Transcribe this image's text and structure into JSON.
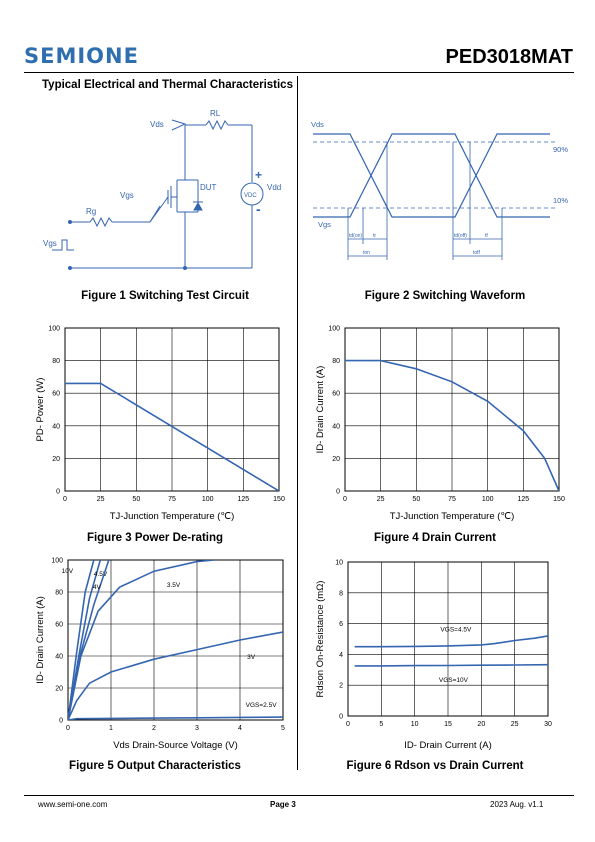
{
  "header": {
    "logo": "SEMIONE",
    "part_number": "PED3018MAT"
  },
  "section_title": "Typical Electrical and Thermal Characteristics",
  "colors": {
    "blue": "#3465b0",
    "grid": "#000000"
  },
  "fig1": {
    "caption": "Figure 1 Switching Test Circuit",
    "labels": {
      "vds": "Vds",
      "rl": "RL",
      "vgs": "Vgs",
      "rg": "Rg",
      "dut": "DUT",
      "vdc": "VDC",
      "vdd": "Vdd",
      "vgs_src": "Vgs",
      "plus": "+",
      "minus": "-"
    }
  },
  "fig2": {
    "caption": "Figure 2 Switching Waveform",
    "labels": {
      "vds": "Vds",
      "vgs": "Vgs",
      "p90": "90%",
      "p10": "10%",
      "td_on": "td(on)",
      "tr": "tr",
      "t_on": "ton",
      "td_off": "td(off)",
      "tf": "tf",
      "t_off": "toff"
    }
  },
  "fig3": {
    "caption": "Figure 3 Power De-rating",
    "chart_data": {
      "type": "line",
      "xlabel": "TJ-Junction Temperature (℃)",
      "ylabel": "PD- Power (W)",
      "xlim": [
        0,
        150
      ],
      "ylim": [
        0,
        100
      ],
      "xticks": [
        0,
        25,
        50,
        75,
        100,
        125,
        150
      ],
      "yticks": [
        0,
        20,
        40,
        60,
        80,
        100
      ],
      "grid": true,
      "series": [
        {
          "x": [
            0,
            25,
            150
          ],
          "y": [
            66,
            66,
            0
          ]
        }
      ]
    }
  },
  "fig4": {
    "caption": "Figure 4 Drain Current",
    "chart_data": {
      "type": "line",
      "xlabel": "TJ-Junction Temperature (℃)",
      "ylabel": "ID- Drain Current (A)",
      "xlim": [
        0,
        150
      ],
      "ylim": [
        0,
        100
      ],
      "xticks": [
        0,
        25,
        50,
        75,
        100,
        125,
        150
      ],
      "yticks": [
        0,
        20,
        40,
        60,
        80,
        100
      ],
      "grid": true,
      "series": [
        {
          "x": [
            0,
            25,
            50,
            75,
            100,
            125,
            140,
            150
          ],
          "y": [
            80,
            80,
            75,
            67,
            55,
            37,
            20,
            0
          ]
        }
      ]
    }
  },
  "fig5": {
    "caption": "Figure 5 Output Characteristics",
    "chart_data": {
      "type": "line",
      "xlabel": "Vds Drain-Source Voltage (V)",
      "ylabel": "ID- Drain Current (A)",
      "xlim": [
        0,
        5
      ],
      "ylim": [
        0,
        100
      ],
      "xticks": [
        0,
        1,
        2,
        3,
        4,
        5
      ],
      "yticks": [
        0,
        20,
        40,
        60,
        80,
        100
      ],
      "grid": true,
      "series": [
        {
          "name": "10V",
          "x": [
            0,
            0.2,
            0.4,
            0.6
          ],
          "y": [
            0,
            42,
            80,
            100
          ]
        },
        {
          "name": "4.5V",
          "x": [
            0,
            0.25,
            0.5,
            0.75
          ],
          "y": [
            0,
            40,
            76,
            100
          ]
        },
        {
          "name": "4V",
          "x": [
            0,
            0.3,
            0.6,
            0.95
          ],
          "y": [
            0,
            42,
            72,
            100
          ]
        },
        {
          "name": "3.5V",
          "x": [
            0,
            0.3,
            0.7,
            1.2,
            2.0,
            3.0,
            3.4
          ],
          "y": [
            0,
            40,
            68,
            83,
            93,
            99,
            100
          ]
        },
        {
          "name": "3V",
          "x": [
            0,
            0.2,
            0.5,
            1.0,
            2.0,
            3.0,
            4.0,
            5.0
          ],
          "y": [
            0,
            12,
            23,
            30,
            38,
            44,
            50,
            55
          ]
        },
        {
          "name": "VGS=2.5V",
          "x": [
            0,
            0.2,
            1,
            2,
            3,
            4,
            5
          ],
          "y": [
            0,
            0.8,
            1.0,
            1.2,
            1.4,
            1.6,
            1.8
          ]
        }
      ]
    }
  },
  "fig6": {
    "caption": "Figure 6 Rdson vs Drain Current",
    "chart_data": {
      "type": "line",
      "xlabel": "ID- Drain Current (A)",
      "ylabel": "Rdson On-Resistance (mΩ)",
      "xlim": [
        0,
        30
      ],
      "ylim": [
        0,
        10
      ],
      "xticks": [
        0,
        5,
        10,
        15,
        20,
        25,
        30
      ],
      "yticks": [
        0,
        2,
        4,
        6,
        8,
        10
      ],
      "grid": true,
      "series": [
        {
          "name": "VGS=4.5V",
          "x": [
            1,
            5,
            10,
            15,
            20,
            22,
            25,
            28,
            30
          ],
          "y": [
            4.5,
            4.5,
            4.52,
            4.55,
            4.62,
            4.7,
            4.9,
            5.05,
            5.2
          ]
        },
        {
          "name": "VGS=10V",
          "x": [
            1,
            5,
            10,
            15,
            20,
            25,
            30
          ],
          "y": [
            3.25,
            3.25,
            3.27,
            3.28,
            3.3,
            3.31,
            3.33
          ]
        }
      ]
    }
  },
  "footer": {
    "website": "www.semi-one.com",
    "page": "Page 3",
    "date_version": "2023 Aug. v1.1"
  }
}
